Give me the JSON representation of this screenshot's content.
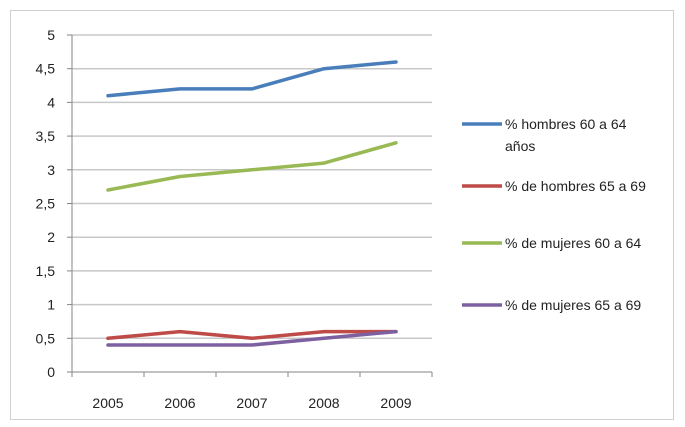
{
  "chart_data": {
    "type": "line",
    "title": "",
    "xlabel": "",
    "ylabel": "",
    "categories": [
      "2005",
      "2006",
      "2007",
      "2008",
      "2009"
    ],
    "ylim": [
      0,
      5
    ],
    "yticks": [
      "0",
      "0,5",
      "1",
      "1,5",
      "2",
      "2,5",
      "3",
      "3,5",
      "4",
      "4,5",
      "5"
    ],
    "grid": true,
    "legend_position": "right",
    "series": [
      {
        "name": "% hombres 60 a 64 años",
        "color": "#4a7ebb",
        "values": [
          4.1,
          4.2,
          4.2,
          4.5,
          4.6
        ]
      },
      {
        "name": "% de hombres 65 a 69",
        "color": "#be4b48",
        "values": [
          0.5,
          0.6,
          0.5,
          0.6,
          0.6
        ]
      },
      {
        "name": "% de mujeres 60 a 64",
        "color": "#98b954",
        "values": [
          2.7,
          2.9,
          3.0,
          3.1,
          3.4
        ]
      },
      {
        "name": "% de mujeres 65 a 69",
        "color": "#7d60a0",
        "values": [
          0.4,
          0.4,
          0.4,
          0.5,
          0.6
        ]
      }
    ]
  }
}
